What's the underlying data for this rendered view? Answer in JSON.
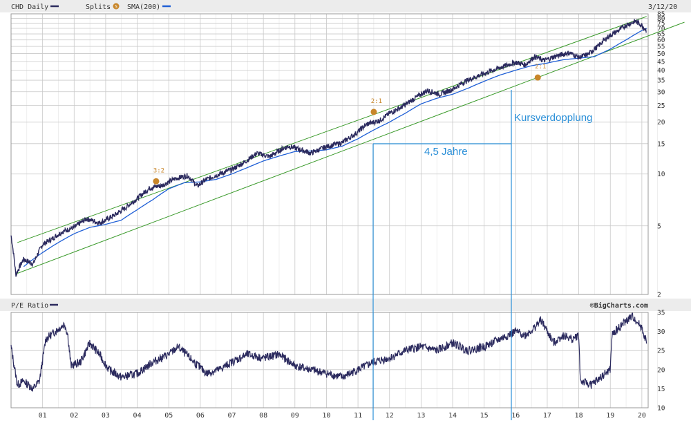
{
  "header": {
    "symbol_label": "CHD Daily",
    "splits_label": "Splits",
    "sma_label": "SMA(200)",
    "date_label": "3/12/20"
  },
  "pe_header": {
    "label": "P/E Ratio",
    "credit": "©BigCharts.com"
  },
  "annotations": {
    "span_label": "4,5 Jahre",
    "double_label": "Kursverdopplung"
  },
  "colors": {
    "price": "#2b2a5e",
    "sma": "#1f5fd6",
    "channel": "#3a9a2a",
    "annotation": "#2a8fd8",
    "split_marker": "#c8862a",
    "grid": "#c8c8c8",
    "panel_header_bg": "#ececec"
  },
  "chart_data": [
    {
      "type": "line",
      "scale": "log",
      "title": "CHD Daily",
      "ylim": [
        2,
        85
      ],
      "y_ticks": [
        "2",
        "5",
        "10",
        "15",
        "20",
        "25",
        "30",
        "35",
        "40",
        "45",
        "50",
        "55",
        "60",
        "65",
        "70",
        "75",
        "80",
        "85"
      ],
      "x_ticks": [
        "01",
        "02",
        "03",
        "04",
        "05",
        "06",
        "07",
        "08",
        "09",
        "10",
        "11",
        "12",
        "13",
        "14",
        "15",
        "16",
        "17",
        "18",
        "19",
        "20"
      ],
      "splits": [
        {
          "x": 2004.6,
          "label": "3:2",
          "value": 9.5
        },
        {
          "x": 2011.5,
          "label": "2:1",
          "value": 24
        },
        {
          "x": 2016.7,
          "label": "2:1",
          "value": 38
        }
      ],
      "series": [
        {
          "name": "CHD Daily",
          "x": [
            2000.0,
            2000.15,
            2000.4,
            2000.7,
            2001.0,
            2001.3,
            2001.6,
            2002.0,
            2002.4,
            2002.8,
            2003.0,
            2003.3,
            2003.6,
            2004.0,
            2004.4,
            2004.8,
            2005.2,
            2005.6,
            2005.9,
            2006.2,
            2006.6,
            2007.0,
            2007.4,
            2007.8,
            2008.2,
            2008.6,
            2008.8,
            2009.2,
            2009.5,
            2010.0,
            2010.5,
            2010.9,
            2011.3,
            2011.7,
            2012.0,
            2012.4,
            2012.8,
            2013.2,
            2013.6,
            2014.0,
            2014.4,
            2014.8,
            2015.2,
            2015.6,
            2016.0,
            2016.3,
            2016.6,
            2016.9,
            2017.3,
            2017.7,
            2018.0,
            2018.3,
            2018.6,
            2018.9,
            2019.2,
            2019.5,
            2019.8,
            2020.0,
            2020.15
          ],
          "values": [
            4.4,
            2.6,
            3.2,
            3.0,
            3.9,
            4.2,
            4.6,
            4.9,
            5.5,
            5.2,
            5.4,
            5.8,
            6.3,
            7.2,
            8.3,
            8.6,
            9.4,
            9.8,
            8.5,
            9.3,
            10.0,
            10.6,
            11.7,
            13.2,
            12.6,
            14.0,
            14.5,
            13.8,
            13.2,
            14.4,
            15.2,
            17.0,
            19.5,
            20.5,
            22.5,
            24.5,
            27.5,
            30.5,
            29.0,
            31.0,
            34.5,
            37.0,
            39.5,
            42.0,
            44.5,
            43.0,
            48.0,
            45.5,
            48.5,
            50.5,
            47.5,
            49.5,
            55.0,
            62.0,
            67.0,
            73.0,
            77.0,
            73.0,
            68.0
          ]
        },
        {
          "name": "SMA(200)",
          "x": [
            2000.4,
            2000.8,
            2001.2,
            2001.6,
            2002.0,
            2002.5,
            2003.0,
            2003.5,
            2004.0,
            2004.5,
            2005.0,
            2005.5,
            2006.0,
            2006.5,
            2007.0,
            2007.5,
            2008.0,
            2008.5,
            2009.0,
            2009.5,
            2010.0,
            2010.5,
            2011.0,
            2011.5,
            2012.0,
            2012.5,
            2013.0,
            2013.5,
            2014.0,
            2014.5,
            2015.0,
            2015.5,
            2016.0,
            2016.5,
            2017.0,
            2017.5,
            2018.0,
            2018.5,
            2019.0,
            2019.5,
            2020.0,
            2020.15
          ],
          "values": [
            2.9,
            3.3,
            3.7,
            4.1,
            4.5,
            4.9,
            5.1,
            5.4,
            6.2,
            7.1,
            8.2,
            8.9,
            9.0,
            9.3,
            10.0,
            10.9,
            11.9,
            12.7,
            13.5,
            13.6,
            13.8,
            14.5,
            16.0,
            18.0,
            20.0,
            22.5,
            25.5,
            27.5,
            29.0,
            31.5,
            34.5,
            37.5,
            40.0,
            42.5,
            44.0,
            46.0,
            47.0,
            48.0,
            53.0,
            60.0,
            68.0,
            70.0
          ]
        },
        {
          "name": "channel upper",
          "x": [
            2000.2,
            2020.15
          ],
          "values": [
            4.0,
            82.0
          ]
        },
        {
          "name": "channel lower",
          "x": [
            2000.2,
            2021.35
          ],
          "values": [
            2.65,
            76.0
          ]
        }
      ]
    },
    {
      "type": "line",
      "title": "P/E Ratio",
      "ylim": [
        10,
        35
      ],
      "y_ticks": [
        "10",
        "15",
        "20",
        "25",
        "30",
        "35"
      ],
      "x_ticks": [
        "01",
        "02",
        "03",
        "04",
        "05",
        "06",
        "07",
        "08",
        "09",
        "10",
        "11",
        "12",
        "13",
        "14",
        "15",
        "16",
        "17",
        "18",
        "19",
        "20"
      ],
      "series": [
        {
          "name": "P/E Ratio",
          "x": [
            2000.0,
            2000.2,
            2000.4,
            2000.7,
            2000.9,
            2001.1,
            2001.4,
            2001.7,
            2001.8,
            2001.9,
            2002.2,
            2002.5,
            2002.8,
            2003.1,
            2003.5,
            2004.0,
            2004.5,
            2005.0,
            2005.3,
            2005.8,
            2006.2,
            2006.6,
            2007.0,
            2007.5,
            2008.0,
            2008.5,
            2009.0,
            2009.5,
            2010.0,
            2010.5,
            2011.0,
            2011.5,
            2012.0,
            2012.5,
            2013.0,
            2013.5,
            2014.0,
            2014.5,
            2015.0,
            2015.5,
            2016.0,
            2016.3,
            2016.6,
            2016.8,
            2017.2,
            2017.5,
            2017.8,
            2018.0,
            2018.05,
            2018.4,
            2018.7,
            2019.0,
            2019.05,
            2019.4,
            2019.7,
            2020.0,
            2020.15
          ],
          "values": [
            26,
            16,
            17,
            15,
            17,
            28,
            30,
            32,
            29,
            21,
            22,
            27,
            24,
            20,
            18,
            19,
            22,
            24,
            26,
            22,
            19,
            20,
            22,
            24,
            23,
            24,
            21,
            20,
            19,
            18,
            20,
            22,
            23,
            25,
            26,
            25,
            27,
            25,
            26,
            28,
            30,
            29,
            31,
            33,
            27,
            29,
            28,
            29,
            17,
            16,
            18,
            20,
            29,
            32,
            34,
            31,
            27
          ]
        }
      ]
    }
  ]
}
